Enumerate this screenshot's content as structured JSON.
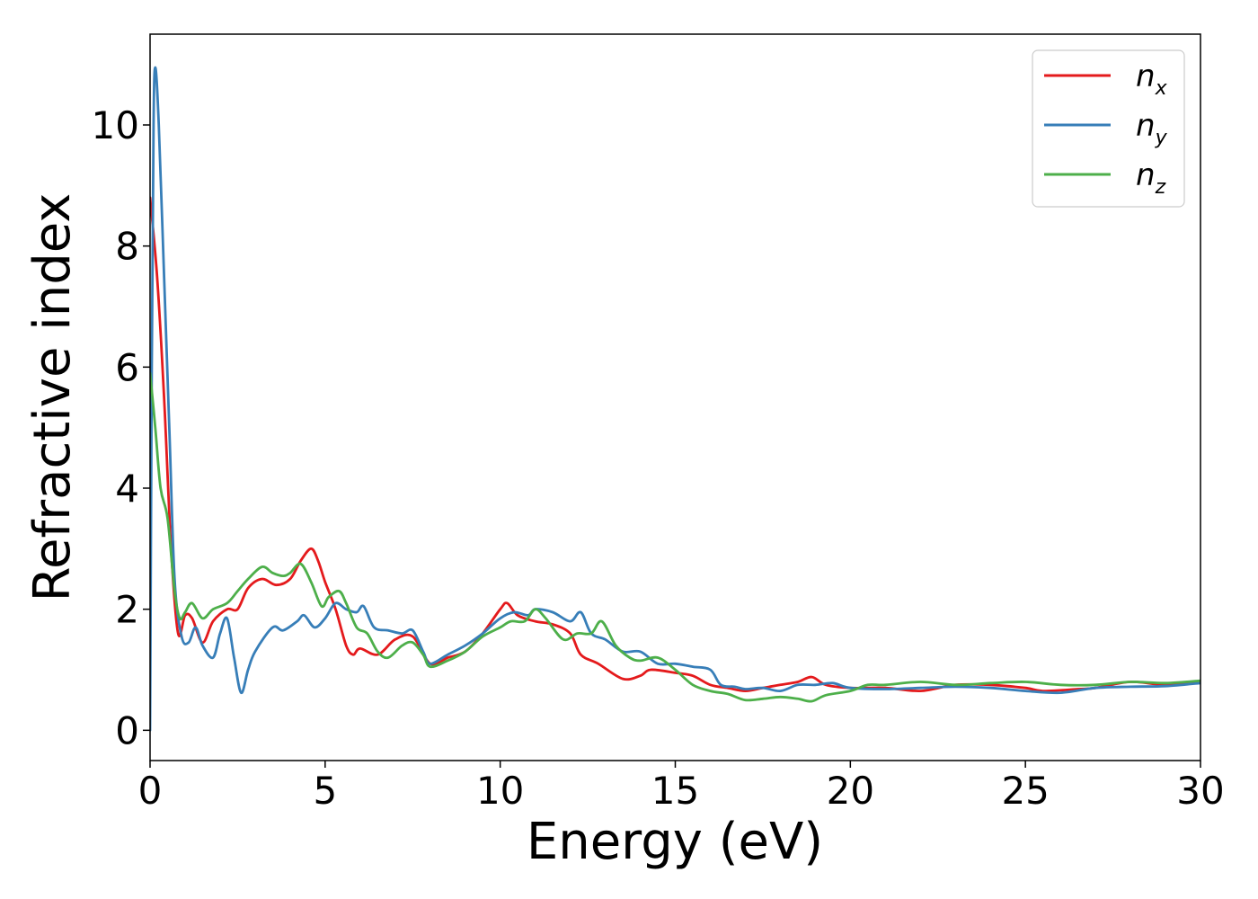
{
  "chart_data": {
    "type": "line",
    "xlabel": "Energy (eV)",
    "ylabel": "Refractive index",
    "xlim": [
      0,
      30
    ],
    "ylim": [
      -0.5,
      11.5
    ],
    "xticks": [
      0,
      5,
      10,
      15,
      20,
      25,
      30
    ],
    "xtick_labels": [
      "0",
      "5",
      "10",
      "15",
      "20",
      "25",
      "30"
    ],
    "yticks": [
      0,
      2,
      4,
      6,
      8,
      10
    ],
    "ytick_labels": [
      "0",
      "2",
      "4",
      "6",
      "8",
      "10"
    ],
    "grid": false,
    "legend_position": "top-right",
    "series": [
      {
        "name": "n_x",
        "legend_base": "n",
        "legend_sub": "x",
        "color": "#e41a1c",
        "points": [
          [
            0,
            8.8
          ],
          [
            0.2,
            7.5
          ],
          [
            0.4,
            5.5
          ],
          [
            0.6,
            3.0
          ],
          [
            0.8,
            1.6
          ],
          [
            1.0,
            1.9
          ],
          [
            1.2,
            1.85
          ],
          [
            1.5,
            1.45
          ],
          [
            1.8,
            1.8
          ],
          [
            2.2,
            2.0
          ],
          [
            2.5,
            2.0
          ],
          [
            2.8,
            2.35
          ],
          [
            3.2,
            2.5
          ],
          [
            3.6,
            2.4
          ],
          [
            4.0,
            2.5
          ],
          [
            4.3,
            2.8
          ],
          [
            4.6,
            3.0
          ],
          [
            4.8,
            2.8
          ],
          [
            5.0,
            2.45
          ],
          [
            5.3,
            2.0
          ],
          [
            5.6,
            1.4
          ],
          [
            5.8,
            1.25
          ],
          [
            6.0,
            1.35
          ],
          [
            6.5,
            1.25
          ],
          [
            7.0,
            1.5
          ],
          [
            7.5,
            1.55
          ],
          [
            8.0,
            1.1
          ],
          [
            8.5,
            1.2
          ],
          [
            9.0,
            1.3
          ],
          [
            9.5,
            1.6
          ],
          [
            10.0,
            2.0
          ],
          [
            10.2,
            2.1
          ],
          [
            10.5,
            1.9
          ],
          [
            11.0,
            1.8
          ],
          [
            11.5,
            1.75
          ],
          [
            12.0,
            1.6
          ],
          [
            12.3,
            1.25
          ],
          [
            12.8,
            1.1
          ],
          [
            13.5,
            0.85
          ],
          [
            14.0,
            0.9
          ],
          [
            14.3,
            1.0
          ],
          [
            15.0,
            0.95
          ],
          [
            15.5,
            0.9
          ],
          [
            16.0,
            0.75
          ],
          [
            16.5,
            0.7
          ],
          [
            17.0,
            0.65
          ],
          [
            17.5,
            0.7
          ],
          [
            18.0,
            0.75
          ],
          [
            18.5,
            0.8
          ],
          [
            18.9,
            0.88
          ],
          [
            19.3,
            0.75
          ],
          [
            20.0,
            0.7
          ],
          [
            21.0,
            0.7
          ],
          [
            22.0,
            0.65
          ],
          [
            23.0,
            0.75
          ],
          [
            24.0,
            0.75
          ],
          [
            25.0,
            0.7
          ],
          [
            25.5,
            0.65
          ],
          [
            26.5,
            0.68
          ],
          [
            27.0,
            0.7
          ],
          [
            28.0,
            0.8
          ],
          [
            29.0,
            0.75
          ],
          [
            30.0,
            0.8
          ]
        ]
      },
      {
        "name": "n_y",
        "legend_base": "n",
        "legend_sub": "y",
        "color": "#377eb8",
        "points": [
          [
            0,
            0.0
          ],
          [
            0.05,
            6.0
          ],
          [
            0.1,
            10.0
          ],
          [
            0.15,
            10.95
          ],
          [
            0.25,
            10.0
          ],
          [
            0.4,
            7.5
          ],
          [
            0.55,
            5.0
          ],
          [
            0.7,
            2.5
          ],
          [
            0.9,
            1.55
          ],
          [
            1.1,
            1.45
          ],
          [
            1.3,
            1.7
          ],
          [
            1.5,
            1.4
          ],
          [
            1.8,
            1.2
          ],
          [
            2.0,
            1.6
          ],
          [
            2.2,
            1.85
          ],
          [
            2.4,
            1.2
          ],
          [
            2.6,
            0.62
          ],
          [
            2.8,
            1.0
          ],
          [
            3.0,
            1.3
          ],
          [
            3.5,
            1.7
          ],
          [
            3.8,
            1.65
          ],
          [
            4.2,
            1.8
          ],
          [
            4.4,
            1.9
          ],
          [
            4.7,
            1.7
          ],
          [
            5.0,
            1.85
          ],
          [
            5.3,
            2.1
          ],
          [
            5.6,
            2.0
          ],
          [
            5.9,
            1.95
          ],
          [
            6.1,
            2.05
          ],
          [
            6.4,
            1.7
          ],
          [
            6.8,
            1.65
          ],
          [
            7.2,
            1.6
          ],
          [
            7.5,
            1.65
          ],
          [
            7.8,
            1.3
          ],
          [
            8.0,
            1.1
          ],
          [
            8.5,
            1.25
          ],
          [
            9.0,
            1.4
          ],
          [
            9.5,
            1.6
          ],
          [
            10.0,
            1.85
          ],
          [
            10.4,
            1.95
          ],
          [
            10.8,
            1.9
          ],
          [
            11.0,
            2.0
          ],
          [
            11.5,
            1.95
          ],
          [
            12.0,
            1.8
          ],
          [
            12.3,
            1.95
          ],
          [
            12.6,
            1.6
          ],
          [
            13.0,
            1.5
          ],
          [
            13.5,
            1.3
          ],
          [
            14.0,
            1.3
          ],
          [
            14.5,
            1.1
          ],
          [
            15.0,
            1.1
          ],
          [
            15.5,
            1.05
          ],
          [
            16.0,
            1.0
          ],
          [
            16.3,
            0.75
          ],
          [
            16.7,
            0.72
          ],
          [
            17.0,
            0.68
          ],
          [
            17.5,
            0.7
          ],
          [
            18.0,
            0.65
          ],
          [
            18.5,
            0.75
          ],
          [
            19.0,
            0.75
          ],
          [
            19.5,
            0.78
          ],
          [
            20.0,
            0.7
          ],
          [
            21.0,
            0.68
          ],
          [
            22.0,
            0.7
          ],
          [
            23.0,
            0.72
          ],
          [
            24.0,
            0.7
          ],
          [
            25.0,
            0.65
          ],
          [
            26.0,
            0.62
          ],
          [
            27.0,
            0.7
          ],
          [
            28.0,
            0.72
          ],
          [
            29.0,
            0.73
          ],
          [
            30.0,
            0.78
          ]
        ]
      },
      {
        "name": "n_z",
        "legend_base": "n",
        "legend_sub": "z",
        "color": "#4daf4a",
        "points": [
          [
            0,
            5.9
          ],
          [
            0.15,
            5.0
          ],
          [
            0.3,
            4.0
          ],
          [
            0.5,
            3.5
          ],
          [
            0.7,
            2.3
          ],
          [
            0.85,
            1.85
          ],
          [
            1.0,
            1.95
          ],
          [
            1.2,
            2.1
          ],
          [
            1.5,
            1.85
          ],
          [
            1.8,
            2.0
          ],
          [
            2.2,
            2.1
          ],
          [
            2.5,
            2.3
          ],
          [
            2.8,
            2.5
          ],
          [
            3.2,
            2.7
          ],
          [
            3.5,
            2.6
          ],
          [
            3.8,
            2.55
          ],
          [
            4.0,
            2.6
          ],
          [
            4.3,
            2.75
          ],
          [
            4.6,
            2.45
          ],
          [
            4.9,
            2.05
          ],
          [
            5.1,
            2.2
          ],
          [
            5.4,
            2.3
          ],
          [
            5.6,
            2.1
          ],
          [
            5.9,
            1.7
          ],
          [
            6.2,
            1.6
          ],
          [
            6.5,
            1.3
          ],
          [
            6.8,
            1.2
          ],
          [
            7.2,
            1.4
          ],
          [
            7.5,
            1.45
          ],
          [
            7.8,
            1.25
          ],
          [
            8.0,
            1.05
          ],
          [
            8.5,
            1.15
          ],
          [
            9.0,
            1.3
          ],
          [
            9.5,
            1.55
          ],
          [
            10.0,
            1.7
          ],
          [
            10.3,
            1.8
          ],
          [
            10.7,
            1.8
          ],
          [
            11.0,
            2.0
          ],
          [
            11.3,
            1.85
          ],
          [
            11.8,
            1.5
          ],
          [
            12.2,
            1.6
          ],
          [
            12.6,
            1.6
          ],
          [
            12.9,
            1.8
          ],
          [
            13.3,
            1.4
          ],
          [
            13.7,
            1.2
          ],
          [
            14.0,
            1.15
          ],
          [
            14.5,
            1.2
          ],
          [
            15.0,
            1.0
          ],
          [
            15.5,
            0.75
          ],
          [
            16.0,
            0.65
          ],
          [
            16.5,
            0.6
          ],
          [
            17.0,
            0.5
          ],
          [
            17.5,
            0.52
          ],
          [
            18.0,
            0.55
          ],
          [
            18.5,
            0.52
          ],
          [
            18.9,
            0.48
          ],
          [
            19.3,
            0.58
          ],
          [
            20.0,
            0.65
          ],
          [
            20.5,
            0.75
          ],
          [
            21.0,
            0.75
          ],
          [
            22.0,
            0.8
          ],
          [
            23.0,
            0.75
          ],
          [
            24.0,
            0.78
          ],
          [
            25.0,
            0.8
          ],
          [
            26.0,
            0.75
          ],
          [
            27.0,
            0.75
          ],
          [
            28.0,
            0.8
          ],
          [
            29.0,
            0.78
          ],
          [
            30.0,
            0.82
          ]
        ]
      }
    ]
  }
}
